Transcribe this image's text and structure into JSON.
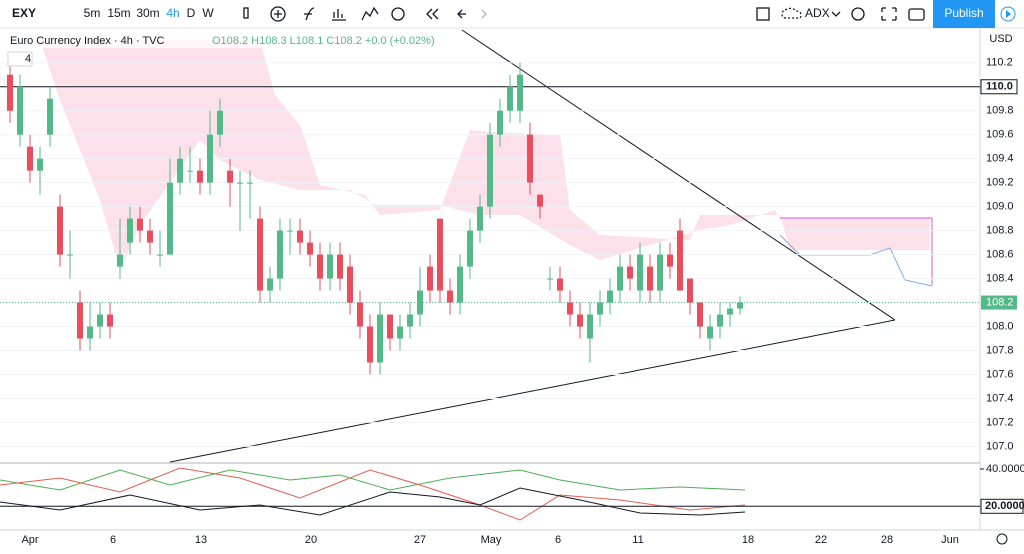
{
  "header": {
    "symbol": "EXY",
    "intervals": [
      "5m",
      "15m",
      "30m",
      "4h",
      "D",
      "W"
    ],
    "indicator": "ADX",
    "publish": "Publish"
  },
  "chart_data": {
    "type": "candlestick",
    "title": "Euro Currency Index · 4h · TVC",
    "ohlc_text": "O108.2 H108.3 L108.1 C108.2 +0.0 (+0.02%)",
    "legend_count": "4",
    "currency": "USD",
    "up_color": "#53b987",
    "down_color": "#eb4d5c",
    "candles": [
      [
        110.1,
        110.2,
        109.7,
        109.8
      ],
      [
        109.6,
        110.1,
        109.5,
        110.0
      ],
      [
        109.5,
        109.6,
        109.2,
        109.3
      ],
      [
        109.3,
        109.5,
        109.1,
        109.4
      ],
      [
        109.6,
        110.0,
        109.5,
        109.9
      ],
      [
        109.0,
        109.1,
        108.5,
        108.6
      ],
      [
        108.6,
        108.8,
        108.4,
        108.6
      ],
      [
        108.2,
        108.3,
        107.8,
        107.9
      ],
      [
        107.9,
        108.2,
        107.8,
        108.0
      ],
      [
        108.0,
        108.2,
        107.9,
        108.1
      ],
      [
        108.1,
        108.2,
        107.9,
        108.0
      ],
      [
        108.5,
        108.9,
        108.4,
        108.6
      ],
      [
        108.7,
        109.0,
        108.6,
        108.9
      ],
      [
        108.9,
        109.0,
        108.7,
        108.8
      ],
      [
        108.8,
        108.9,
        108.6,
        108.7
      ],
      [
        108.6,
        108.8,
        108.5,
        108.6
      ],
      [
        108.6,
        109.4,
        108.6,
        109.2
      ],
      [
        109.2,
        109.5,
        109.1,
        109.4
      ],
      [
        109.3,
        109.5,
        109.2,
        109.3
      ],
      [
        109.3,
        109.4,
        109.1,
        109.2
      ],
      [
        109.2,
        109.8,
        109.1,
        109.6
      ],
      [
        109.6,
        109.9,
        109.5,
        109.8
      ],
      [
        109.3,
        109.4,
        109.0,
        109.2
      ],
      [
        109.2,
        109.3,
        108.8,
        109.2
      ],
      [
        109.2,
        109.3,
        108.9,
        109.2
      ],
      [
        108.9,
        109.0,
        108.2,
        108.3
      ],
      [
        108.3,
        108.5,
        108.2,
        108.4
      ],
      [
        108.4,
        108.9,
        108.3,
        108.8
      ],
      [
        108.8,
        108.9,
        108.6,
        108.8
      ],
      [
        108.8,
        108.9,
        108.6,
        108.7
      ],
      [
        108.7,
        108.8,
        108.5,
        108.6
      ],
      [
        108.6,
        108.7,
        108.3,
        108.4
      ],
      [
        108.4,
        108.7,
        108.3,
        108.6
      ],
      [
        108.6,
        108.7,
        108.3,
        108.4
      ],
      [
        108.5,
        108.6,
        108.1,
        108.2
      ],
      [
        108.2,
        108.3,
        107.9,
        108.0
      ],
      [
        108.0,
        108.1,
        107.6,
        107.7
      ],
      [
        107.7,
        108.2,
        107.6,
        108.1
      ],
      [
        108.1,
        108.1,
        107.8,
        107.9
      ],
      [
        107.9,
        108.1,
        107.8,
        108.0
      ],
      [
        108.0,
        108.2,
        107.9,
        108.1
      ],
      [
        108.1,
        108.5,
        108.0,
        108.3
      ],
      [
        108.5,
        108.6,
        108.2,
        108.3
      ],
      [
        108.9,
        108.9,
        108.2,
        108.3
      ],
      [
        108.3,
        108.4,
        108.1,
        108.2
      ],
      [
        108.2,
        108.6,
        108.1,
        108.5
      ],
      [
        108.5,
        108.9,
        108.4,
        108.8
      ],
      [
        108.8,
        109.1,
        108.7,
        109.0
      ],
      [
        109.0,
        109.7,
        108.9,
        109.6
      ],
      [
        109.6,
        109.9,
        109.5,
        109.8
      ],
      [
        109.8,
        110.1,
        109.7,
        110.0
      ],
      [
        109.8,
        110.2,
        109.7,
        110.1
      ],
      [
        109.6,
        109.7,
        109.1,
        109.2
      ],
      [
        109.1,
        109.1,
        108.9,
        109.0
      ],
      [
        108.4,
        108.5,
        108.3,
        108.4
      ],
      [
        108.4,
        108.5,
        108.2,
        108.3
      ],
      [
        108.2,
        108.3,
        108.0,
        108.1
      ],
      [
        108.1,
        108.2,
        107.9,
        108.0
      ],
      [
        107.9,
        108.2,
        107.7,
        108.1
      ],
      [
        108.1,
        108.3,
        108.0,
        108.2
      ],
      [
        108.2,
        108.4,
        108.1,
        108.3
      ],
      [
        108.3,
        108.6,
        108.2,
        108.5
      ],
      [
        108.5,
        108.6,
        108.3,
        108.4
      ],
      [
        108.3,
        108.7,
        108.2,
        108.6
      ],
      [
        108.5,
        108.6,
        108.2,
        108.3
      ],
      [
        108.3,
        108.7,
        108.2,
        108.6
      ],
      [
        108.6,
        108.7,
        108.4,
        108.5
      ],
      [
        108.8,
        108.9,
        108.3,
        108.3
      ],
      [
        108.4,
        108.4,
        108.1,
        108.2
      ],
      [
        108.2,
        108.2,
        107.9,
        108.0
      ],
      [
        107.9,
        108.1,
        107.8,
        108.0
      ],
      [
        108.0,
        108.2,
        107.9,
        108.1
      ],
      [
        108.1,
        108.2,
        108.0,
        108.15
      ],
      [
        108.15,
        108.25,
        108.1,
        108.2
      ]
    ],
    "ylim": [
      106.87,
      110.49
    ],
    "yticks": [
      110.2,
      {
        "value": 110,
        "label": "110.0"
      },
      109.8,
      109.6,
      109.4,
      109.2,
      {
        "value": 109,
        "label": "109.0"
      },
      108.8,
      108.6,
      108.4,
      108.2,
      {
        "value": 108,
        "label": "108.0"
      },
      107.8,
      107.6,
      107.4,
      107.2,
      {
        "value": 107,
        "label": "107.0"
      }
    ],
    "hline": {
      "value": 110,
      "label": "110.0"
    },
    "last_price": 108.2,
    "xlabels": [
      "Apr",
      "6",
      "13",
      "20",
      "27",
      "May",
      "6",
      "11",
      "18",
      "22",
      "28",
      "Jun"
    ],
    "adx": {
      "ylim": [
        7.3,
        43.2
      ],
      "yticks": [
        {
          "value": 40,
          "label": "40.0000"
        }
      ],
      "hline": {
        "value": 20,
        "label": "20.0000"
      }
    }
  }
}
